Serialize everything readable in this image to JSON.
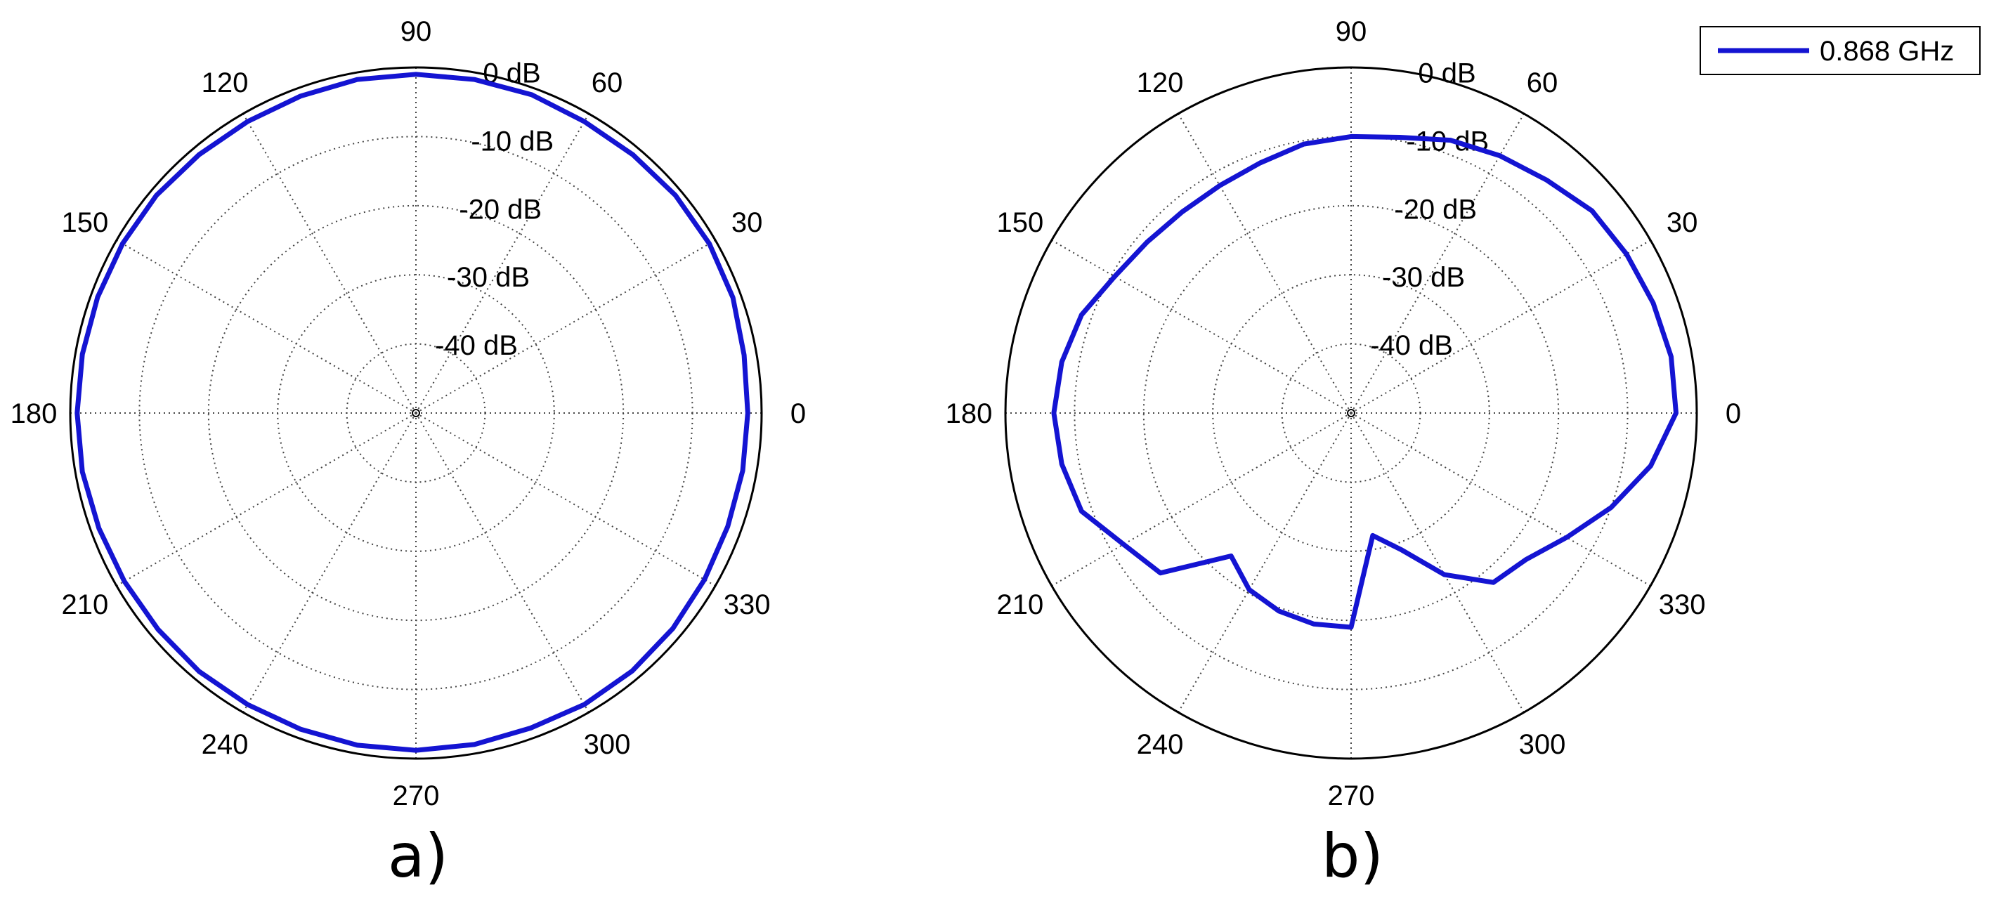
{
  "chart_data": [
    {
      "type": "polar",
      "panel_label": "a)",
      "theta_unit": "deg",
      "theta_ticks": [
        0,
        30,
        60,
        90,
        120,
        150,
        180,
        210,
        240,
        270,
        300,
        330
      ],
      "theta_tick_labels": [
        "0",
        "30",
        "60",
        "90",
        "120",
        "150",
        "180",
        "210",
        "240",
        "270",
        "300",
        "330"
      ],
      "r_ticks": [
        0,
        -10,
        -20,
        -30,
        -40
      ],
      "r_tick_labels": [
        "0 dB",
        "-10 dB",
        "-20 dB",
        "-30 dB",
        "-40 dB"
      ],
      "r_range": [
        -50,
        0
      ],
      "grid": true,
      "series": [
        {
          "name": "0.868 GHz",
          "theta": [
            0,
            10,
            20,
            30,
            40,
            50,
            60,
            70,
            80,
            90,
            100,
            110,
            120,
            130,
            140,
            150,
            160,
            170,
            180,
            190,
            200,
            210,
            220,
            230,
            240,
            250,
            260,
            270,
            280,
            290,
            300,
            310,
            320,
            330,
            340,
            350
          ],
          "r": [
            -2.0,
            -1.8,
            -1.2,
            -1.0,
            -1.0,
            -1.2,
            -1.3,
            -1.0,
            -1.0,
            -1.0,
            -1.0,
            -1.2,
            -1.3,
            -1.2,
            -1.0,
            -1.0,
            -1.0,
            -1.0,
            -1.0,
            -1.0,
            -1.2,
            -1.3,
            -1.3,
            -1.2,
            -1.3,
            -1.3,
            -1.2,
            -1.2,
            -1.3,
            -1.5,
            -1.3,
            -1.3,
            -1.5,
            -1.8,
            -2.0,
            -2.0
          ]
        }
      ]
    },
    {
      "type": "polar",
      "panel_label": "b)",
      "theta_unit": "deg",
      "theta_ticks": [
        0,
        30,
        60,
        90,
        120,
        150,
        180,
        210,
        240,
        270,
        300,
        330
      ],
      "theta_tick_labels": [
        "0",
        "30",
        "60",
        "90",
        "120",
        "150",
        "180",
        "210",
        "240",
        "270",
        "300",
        "330"
      ],
      "r_ticks": [
        0,
        -10,
        -20,
        -30,
        -40
      ],
      "r_tick_labels": [
        "0 dB",
        "-10 dB",
        "-20 dB",
        "-30 dB",
        "-40 dB"
      ],
      "r_range": [
        -50,
        0
      ],
      "grid": true,
      "legend": {
        "placement": "top-right",
        "entries": [
          "0.868 GHz"
        ]
      },
      "series": [
        {
          "name": "0.868 GHz",
          "theta": [
            0,
            10,
            20,
            30,
            40,
            50,
            60,
            70,
            80,
            90,
            100,
            110,
            120,
            130,
            140,
            150,
            160,
            170,
            180,
            190,
            200,
            210,
            220,
            230,
            240,
            250,
            260,
            270,
            280,
            290,
            300,
            310,
            320,
            330,
            340,
            350
          ],
          "r": [
            -3.0,
            -3.0,
            -3.5,
            -4.0,
            -4.5,
            -6.0,
            -7.0,
            -8.0,
            -9.5,
            -10.0,
            -10.5,
            -11.5,
            -12.0,
            -12.0,
            -11.5,
            -10.5,
            -8.5,
            -7.5,
            -7.0,
            -7.5,
            -8.5,
            -12.0,
            -14.0,
            -23.0,
            -20.5,
            -19.5,
            -19.0,
            -19.0,
            -32.0,
            -29.0,
            -23.0,
            -18.0,
            -17.0,
            -14.0,
            -10.0,
            -6.0
          ]
        }
      ]
    }
  ]
}
